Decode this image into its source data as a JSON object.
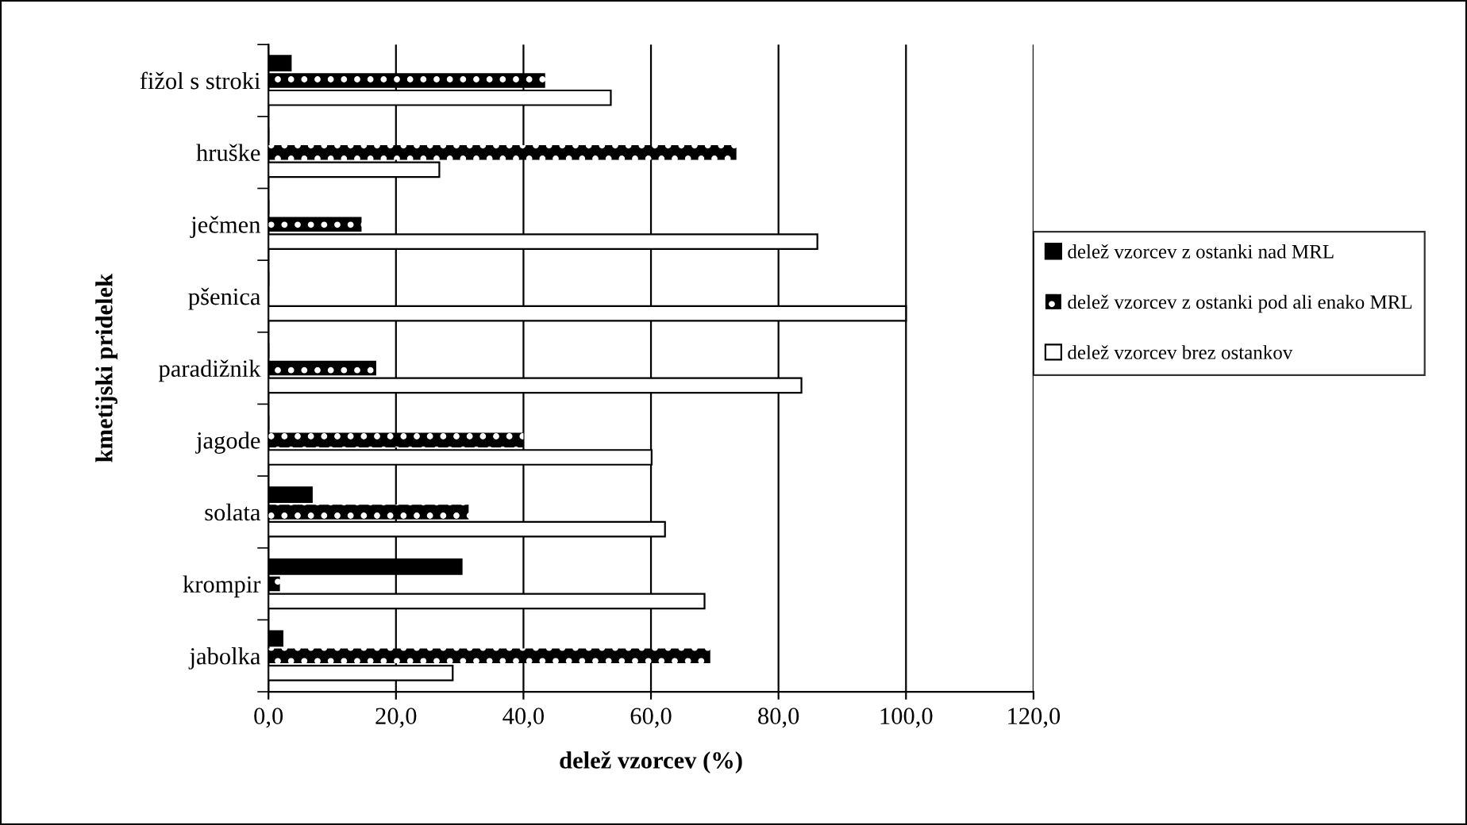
{
  "chart_data": {
    "type": "bar",
    "orientation": "horizontal",
    "xlabel": "delež vzorcev (%)",
    "ylabel": "kmetijski pridelek",
    "categories": [
      "fižol s stroki",
      "hruške",
      "ječmen",
      "pšenica",
      "paradižnik",
      "jagode",
      "solata",
      "krompir",
      "jabolka"
    ],
    "series": [
      {
        "name": "delež vzorcev z ostanki nad MRL",
        "color": "#000000",
        "values": [
          3.5,
          0,
          0,
          0,
          0,
          0,
          6.8,
          30.3,
          2.2
        ]
      },
      {
        "name": "delež vzorcev z ostanki pod ali enako MRL",
        "color": "#000000",
        "values": [
          43.4,
          73.4,
          14.6,
          0,
          16.9,
          40.0,
          31.4,
          1.8,
          69.3
        ]
      },
      {
        "name": "delež vzorcev brez ostankov",
        "color": "#ffffff",
        "values": [
          53.7,
          26.8,
          86.1,
          100,
          83.6,
          60.1,
          62.2,
          68.4,
          28.9
        ]
      }
    ],
    "xlim": [
      0,
      120
    ],
    "xticks": [
      {
        "value": 0,
        "label": "0,0"
      },
      {
        "value": 20,
        "label": "20,0"
      },
      {
        "value": 40,
        "label": "40,0"
      },
      {
        "value": 60,
        "label": "60,0"
      },
      {
        "value": 80,
        "label": "80,0"
      },
      {
        "value": 100,
        "label": "100,0"
      },
      {
        "value": 120,
        "label": "120,0"
      }
    ],
    "grid": "x",
    "legend": "right"
  }
}
